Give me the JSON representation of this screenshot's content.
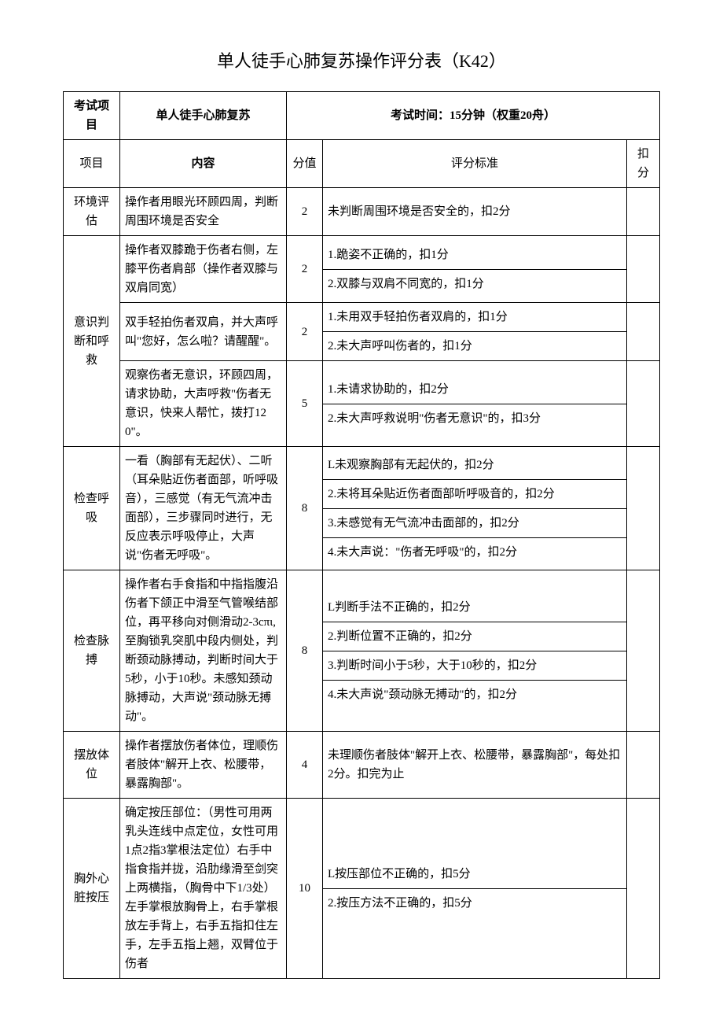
{
  "title": "单人徒手心肺复苏操作评分表（K42）",
  "header": {
    "exam_item_label": "考试项目",
    "exam_item_value": "单人徒手心肺复苏",
    "exam_time_label": "考试时间：15分钟（权重20舟）"
  },
  "columns": {
    "project": "项目",
    "content": "内容",
    "score": "分值",
    "criteria": "评分标准",
    "deduction": "扣分"
  },
  "rows": [
    {
      "project": "环境评估",
      "content": "操作者用眼光环顾四周，判断周围环境是否安全",
      "score": "2",
      "criteria": [
        "未判断周围环境是否安全的，扣2分"
      ]
    },
    {
      "project": "意识判断和呼救",
      "project_rowspan": 3,
      "content": "操作者双膝跪于伤者右侧，左膝平伤者肩部（操作者双膝与双肩同宽）",
      "score": "2",
      "criteria": [
        "1.跪姿不正确的，扣1分",
        "2.双膝与双肩不同宽的，扣1分"
      ]
    },
    {
      "content": "双手轻拍伤者双肩，并大声呼叫\"您好，怎么啦？请醒醒\"。",
      "score": "2",
      "criteria": [
        "1.未用双手轻拍伤者双肩的，扣1分",
        "2.未大声呼叫伤者的，扣1分"
      ]
    },
    {
      "content": "观察伤者无意识，环顾四周，请求协助，大声呼救\"伤者无意识，快来人帮忙，拨打120\"。",
      "score": "5",
      "criteria": [
        "1.未请求协助的，扣2分",
        "2.未大声呼救说明\"伤者无意识\"的，扣3分"
      ]
    },
    {
      "project": "检查呼吸",
      "content": "一看（胸部有无起伏）、二听（耳朵贴近伤者面部，听呼吸音），三感觉（有无气流冲击面部），三步骤同时进行，无反应表示呼吸停止，大声说\"伤者无呼吸\"。",
      "score": "8",
      "criteria": [
        "L未观察胸部有无起伏的，扣2分",
        "2.未将耳朵贴近伤者面部听呼吸音的，扣2分",
        "3.未感觉有无气流冲击面部的，扣2分",
        "4.未大声说：\"伤者无呼吸\"的，扣2分"
      ]
    },
    {
      "project": "检查脉搏",
      "content": "操作者右手食指和中指指腹沿伤者下颌正中滑至气管喉结部位，再平移向对侧滑动2-3cπι,至胸锁乳突肌中段内侧处，判断颈动脉搏动，判断时间大于5秒，小于10秒。未感知颈动脉搏动，大声说\"颈动脉无搏动\"。",
      "score": "8",
      "criteria": [
        "L判断手法不正确的，扣2分",
        "2.判断位置不正确的，扣2分",
        "3.判断时间小于5秒，大于10秒的，扣2分",
        "4.未大声说\"颈动脉无搏动\"的，扣2分"
      ]
    },
    {
      "project": "摆放体位",
      "content": "操作者摆放伤者体位，理顺伤者肢体\"解开上衣、松腰带，暴露胸部\"。",
      "score": "4",
      "criteria": [
        "未理顺伤者肢体\"解开上衣、松腰带，暴露胸部\"，每处扣2分。扣完为止"
      ]
    },
    {
      "project": "胸外心脏按压",
      "content": "确定按压部位：（男性可用两乳头连线中点定位，女性可用1点2指3掌根法定位）右手中指食指并拢，沿肋缘滑至剑突上两横指，（胸骨中下1/3处）左手掌根放胸骨上，右手掌根放左手背上，右手五指扣住左手，左手五指上翘，双臂位于伤者",
      "score": "10",
      "criteria": [
        "L按压部位不正确的，扣5分",
        "2.按压方法不正确的，扣5分"
      ]
    }
  ]
}
